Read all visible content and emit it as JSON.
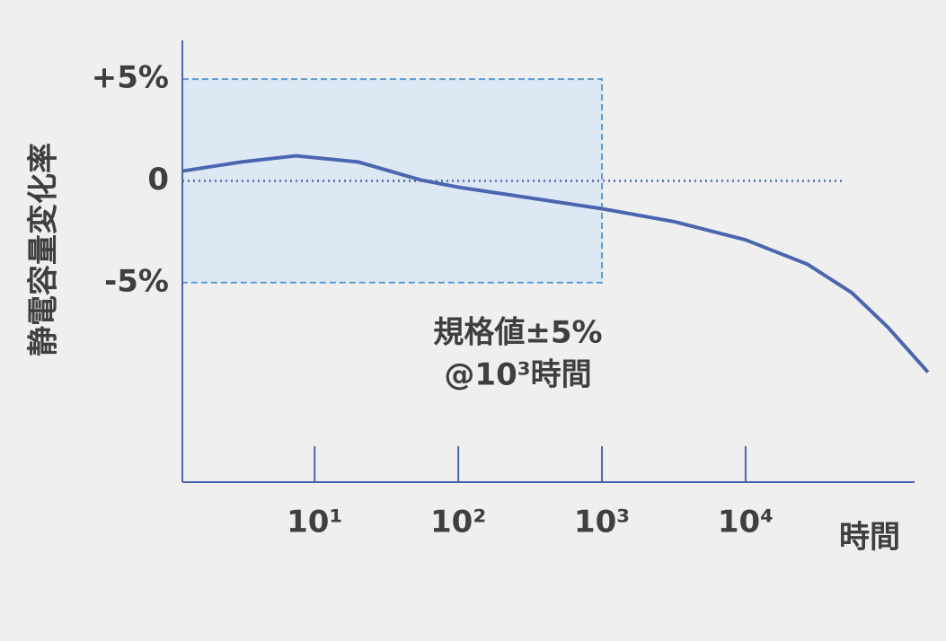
{
  "chart_data": {
    "type": "line",
    "x_label": "時間",
    "y_label": "静電容量変化率",
    "xscale": "log",
    "xlim": [
      1.2,
      150000
    ],
    "ylim": [
      -14.8,
      6.9
    ],
    "xticks": [
      {
        "value": 10,
        "label": "10¹"
      },
      {
        "value": 100,
        "label": "10²"
      },
      {
        "value": 1000,
        "label": "10³"
      },
      {
        "value": 10000,
        "label": "10⁴"
      }
    ],
    "yticks": [
      {
        "value": 5,
        "label": "+5%"
      },
      0,
      {
        "value": -5,
        "label": "-5%"
      }
    ],
    "series": [
      {
        "color": "#4a66b0",
        "x": [
          1.2,
          3.1,
          7.4,
          20,
          55,
          100,
          1000,
          3160,
          10000,
          27000,
          55000,
          98000,
          186000
        ],
        "values": [
          0.48,
          0.93,
          1.23,
          0.93,
          0.04,
          -0.31,
          -1.37,
          -2.0,
          -2.9,
          -4.1,
          -5.5,
          -7.2,
          -9.4
        ]
      }
    ],
    "spec_band": {
      "x": [
        1.2,
        1000
      ],
      "y": [
        -5,
        5
      ],
      "color": "#5b9bd5",
      "fill": "#dde8f5",
      "label": [
        "規格値±5%",
        "@10³時間"
      ]
    },
    "reference_line": {
      "y": 0,
      "x": [
        1.2,
        48000
      ],
      "color": "#4a66b0"
    }
  }
}
